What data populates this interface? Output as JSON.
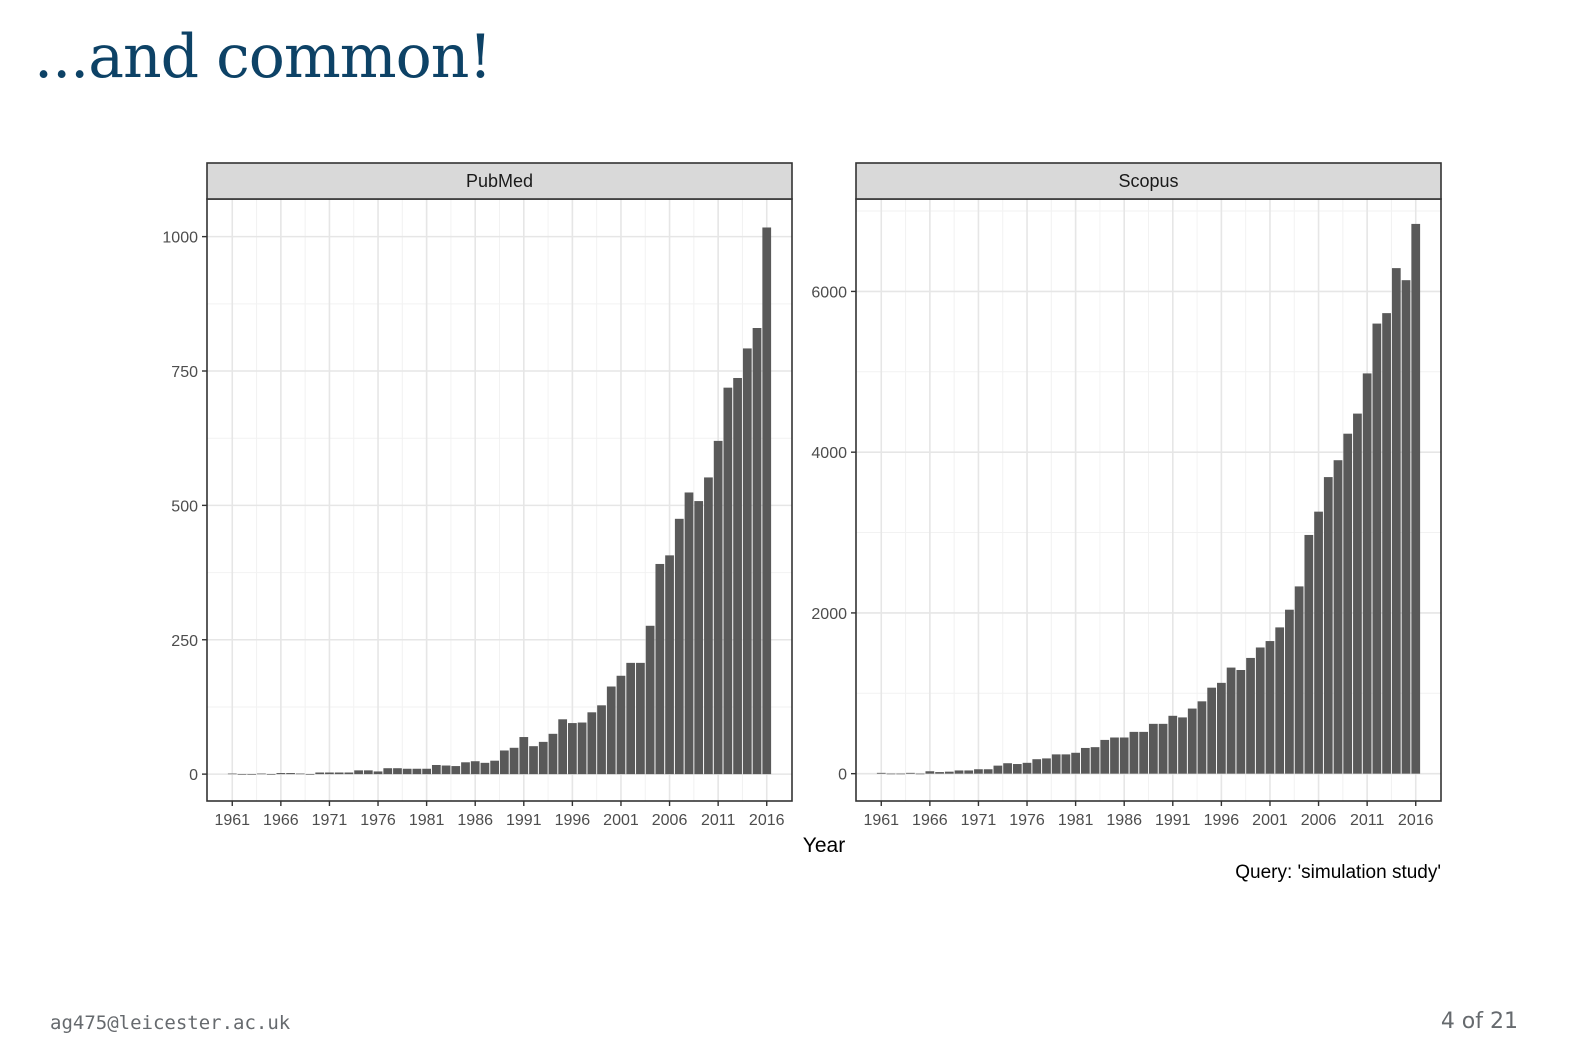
{
  "slide": {
    "title": "...and common!",
    "footer_email": "ag475@leicester.ac.uk",
    "footer_page": "4 of 21"
  },
  "chart_data": {
    "type": "bar",
    "xlabel": "Year",
    "caption": "Query: 'simulation study'",
    "x_ticks": [
      1961,
      1966,
      1971,
      1976,
      1981,
      1986,
      1991,
      1996,
      2001,
      2006,
      2011,
      2016
    ],
    "bar_color": "#595959",
    "strip_color": "#d9d9d9",
    "grid": true,
    "panels": [
      {
        "name": "PubMed",
        "years": [
          1961,
          1962,
          1963,
          1964,
          1965,
          1966,
          1967,
          1968,
          1969,
          1970,
          1971,
          1972,
          1973,
          1974,
          1975,
          1976,
          1977,
          1978,
          1979,
          1980,
          1981,
          1982,
          1983,
          1984,
          1985,
          1986,
          1987,
          1988,
          1989,
          1990,
          1991,
          1992,
          1993,
          1994,
          1995,
          1996,
          1997,
          1998,
          1999,
          2000,
          2001,
          2002,
          2003,
          2004,
          2005,
          2006,
          2007,
          2008,
          2009,
          2010,
          2011,
          2012,
          2013,
          2014,
          2015,
          2016
        ],
        "values": [
          1,
          0,
          0,
          1,
          0,
          2,
          2,
          1,
          0,
          3,
          3,
          3,
          3,
          7,
          7,
          5,
          11,
          11,
          10,
          10,
          10,
          17,
          16,
          15,
          22,
          24,
          21,
          25,
          44,
          49,
          69,
          52,
          60,
          75,
          102,
          95,
          96,
          115,
          128,
          163,
          183,
          207,
          207,
          276,
          391,
          407,
          475,
          524,
          508,
          552,
          620,
          719,
          737,
          792,
          830,
          1017
        ],
        "ylim": [
          -50,
          1070
        ],
        "y_ticks": [
          0,
          250,
          500,
          750,
          1000
        ]
      },
      {
        "name": "Scopus",
        "years": [
          1961,
          1962,
          1963,
          1964,
          1965,
          1966,
          1967,
          1968,
          1969,
          1970,
          1971,
          1972,
          1973,
          1974,
          1975,
          1976,
          1977,
          1978,
          1979,
          1980,
          1981,
          1982,
          1983,
          1984,
          1985,
          1986,
          1987,
          1988,
          1989,
          1990,
          1991,
          1992,
          1993,
          1994,
          1995,
          1996,
          1997,
          1998,
          1999,
          2000,
          2001,
          2002,
          2003,
          2004,
          2005,
          2006,
          2007,
          2008,
          2009,
          2010,
          2011,
          2012,
          2013,
          2014,
          2015,
          2016
        ],
        "values": [
          10,
          0,
          0,
          10,
          0,
          30,
          20,
          25,
          40,
          40,
          55,
          55,
          100,
          130,
          120,
          135,
          180,
          190,
          240,
          240,
          260,
          320,
          330,
          420,
          450,
          450,
          520,
          520,
          620,
          620,
          720,
          700,
          810,
          900,
          1070,
          1130,
          1320,
          1290,
          1440,
          1570,
          1650,
          1820,
          2040,
          2330,
          2970,
          3260,
          3690,
          3900,
          4230,
          4480,
          4980,
          5600,
          5730,
          6290,
          6140,
          6840
        ],
        "ylim": [
          -340,
          7150
        ],
        "y_ticks": [
          0,
          2000,
          4000,
          6000
        ]
      }
    ]
  }
}
